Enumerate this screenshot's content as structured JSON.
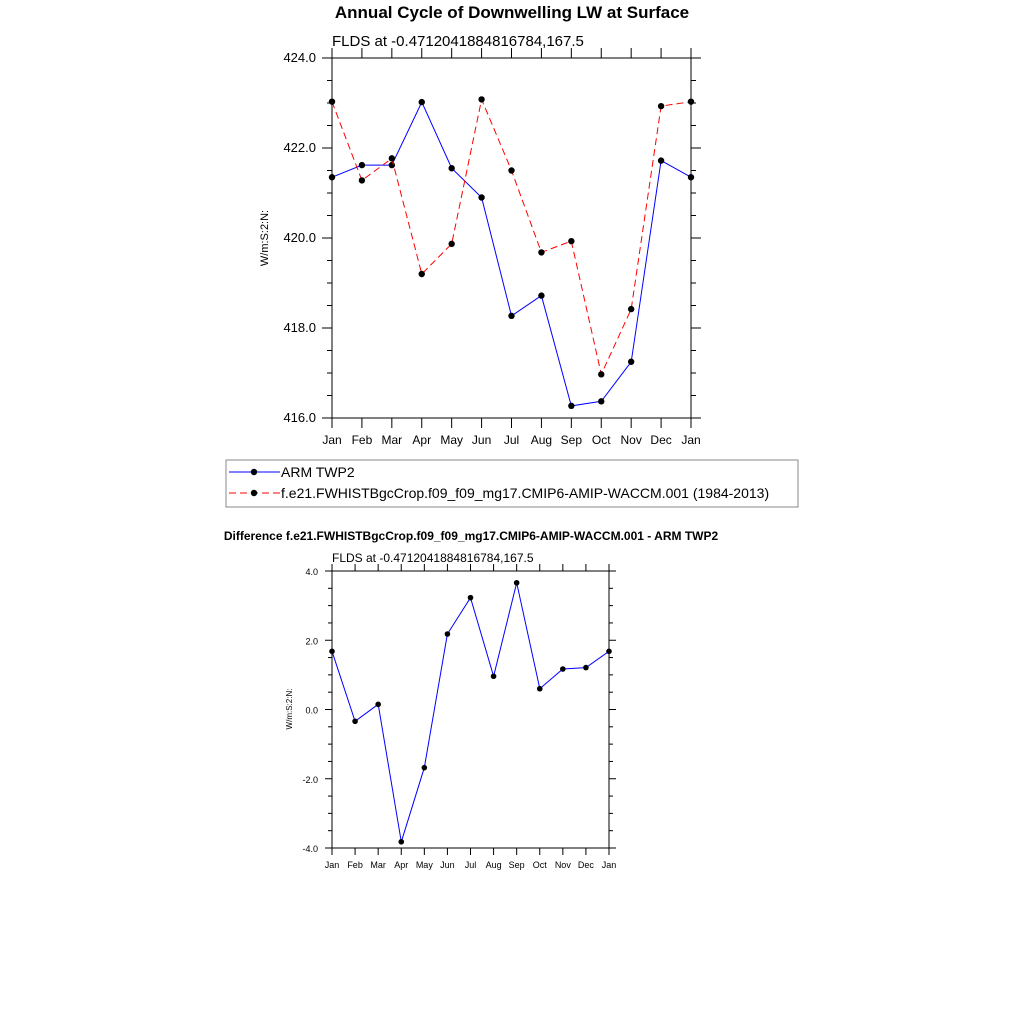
{
  "chart_data": [
    {
      "type": "line",
      "title": "Annual Cycle of Downwelling LW at Surface",
      "subtitle": "FLDS at -0.4712041884816784,167.5",
      "xlabel": "",
      "ylabel": "W/m:S:2:N:",
      "categories": [
        "Jan",
        "Feb",
        "Mar",
        "Apr",
        "May",
        "Jun",
        "Jul",
        "Aug",
        "Sep",
        "Oct",
        "Nov",
        "Dec",
        "Jan"
      ],
      "ylim": [
        416.0,
        424.0
      ],
      "yticks": [
        "416.0",
        "418.0",
        "420.0",
        "422.0",
        "424.0"
      ],
      "ytick_values": [
        416,
        418,
        420,
        422,
        424
      ],
      "series": [
        {
          "name": "ARM TWP2",
          "color": "#0000ff",
          "style": "solid",
          "values": [
            421.35,
            421.62,
            421.62,
            423.02,
            421.55,
            420.9,
            418.27,
            418.72,
            416.27,
            416.37,
            417.25,
            421.72,
            421.35
          ]
        },
        {
          "name": "f.e21.FWHISTBgcCrop.f09_f09_mg17.CMIP6-AMIP-WACCM.001 (1984-2013)",
          "color": "#ff0000",
          "style": "dashed",
          "values": [
            423.03,
            421.28,
            421.77,
            419.2,
            419.87,
            423.08,
            421.5,
            419.68,
            419.93,
            416.97,
            418.42,
            422.93,
            423.03
          ]
        }
      ],
      "legend": "bottom"
    },
    {
      "type": "line",
      "title": "Difference f.e21.FWHISTBgcCrop.f09_f09_mg17.CMIP6-AMIP-WACCM.001 - ARM TWP2",
      "subtitle": "FLDS at -0.4712041884816784,167.5",
      "xlabel": "",
      "ylabel": "W/m:S:2:N:",
      "categories": [
        "Jan",
        "Feb",
        "Mar",
        "Apr",
        "May",
        "Jun",
        "Jul",
        "Aug",
        "Sep",
        "Oct",
        "Nov",
        "Dec",
        "Jan"
      ],
      "ylim": [
        -4.0,
        4.0
      ],
      "yticks": [
        "-4.0",
        "-2.0",
        "0.0",
        "2.0",
        "4.0"
      ],
      "ytick_values": [
        -4,
        -2,
        0,
        2,
        4
      ],
      "series": [
        {
          "name": "Difference",
          "color": "#0000ff",
          "style": "solid",
          "values": [
            1.68,
            -0.34,
            0.15,
            -3.82,
            -1.68,
            2.18,
            3.23,
            0.96,
            3.66,
            0.6,
            1.17,
            1.21,
            1.68
          ]
        }
      ]
    }
  ]
}
